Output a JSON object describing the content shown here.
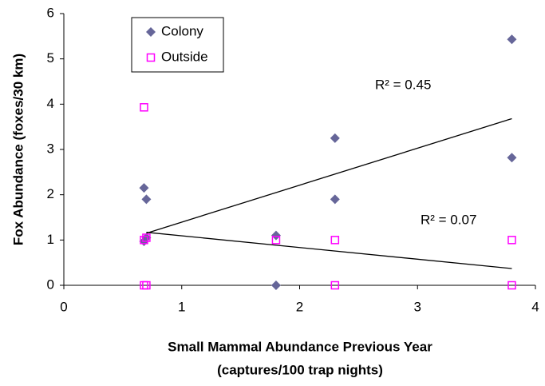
{
  "chart_data": {
    "type": "scatter",
    "x_label": [
      "Small Mammal Abundance Previous Year",
      "(captures/100 trap nights)"
    ],
    "y_label": "Fox Abundance (foxes/30 km)",
    "xlim": [
      0,
      4
    ],
    "xticks": [
      0,
      1,
      2,
      3,
      4
    ],
    "ylim": [
      0,
      6
    ],
    "yticks": [
      0,
      1,
      2,
      3,
      4,
      5,
      6
    ],
    "grid": false,
    "legend": "top-left",
    "series": [
      {
        "name": "Colony",
        "color": "#666699",
        "marker": "diamond",
        "x": [
          0.68,
          0.7,
          0.68,
          0.7,
          1.8,
          1.8,
          2.3,
          2.3,
          3.8,
          3.8
        ],
        "values": [
          2.15,
          1.9,
          0.97,
          1.05,
          1.1,
          0,
          3.25,
          1.9,
          5.43,
          2.82
        ]
      },
      {
        "name": "Outside",
        "color": "#ff00ff",
        "marker": "open-square",
        "x": [
          0.68,
          0.68,
          0.7,
          0.68,
          0.7,
          1.8,
          2.3,
          2.3,
          3.8,
          3.8
        ],
        "values": [
          3.93,
          1.0,
          1.05,
          0,
          0,
          1.0,
          1.0,
          0,
          1.0,
          0
        ]
      }
    ],
    "trendlines": [
      {
        "x": [
          0.7,
          3.8
        ],
        "values": [
          1.15,
          3.68
        ],
        "label": "R² = 0.45"
      },
      {
        "x": [
          0.7,
          3.8
        ],
        "values": [
          1.17,
          0.37
        ],
        "label": "R² = 0.07"
      }
    ]
  }
}
